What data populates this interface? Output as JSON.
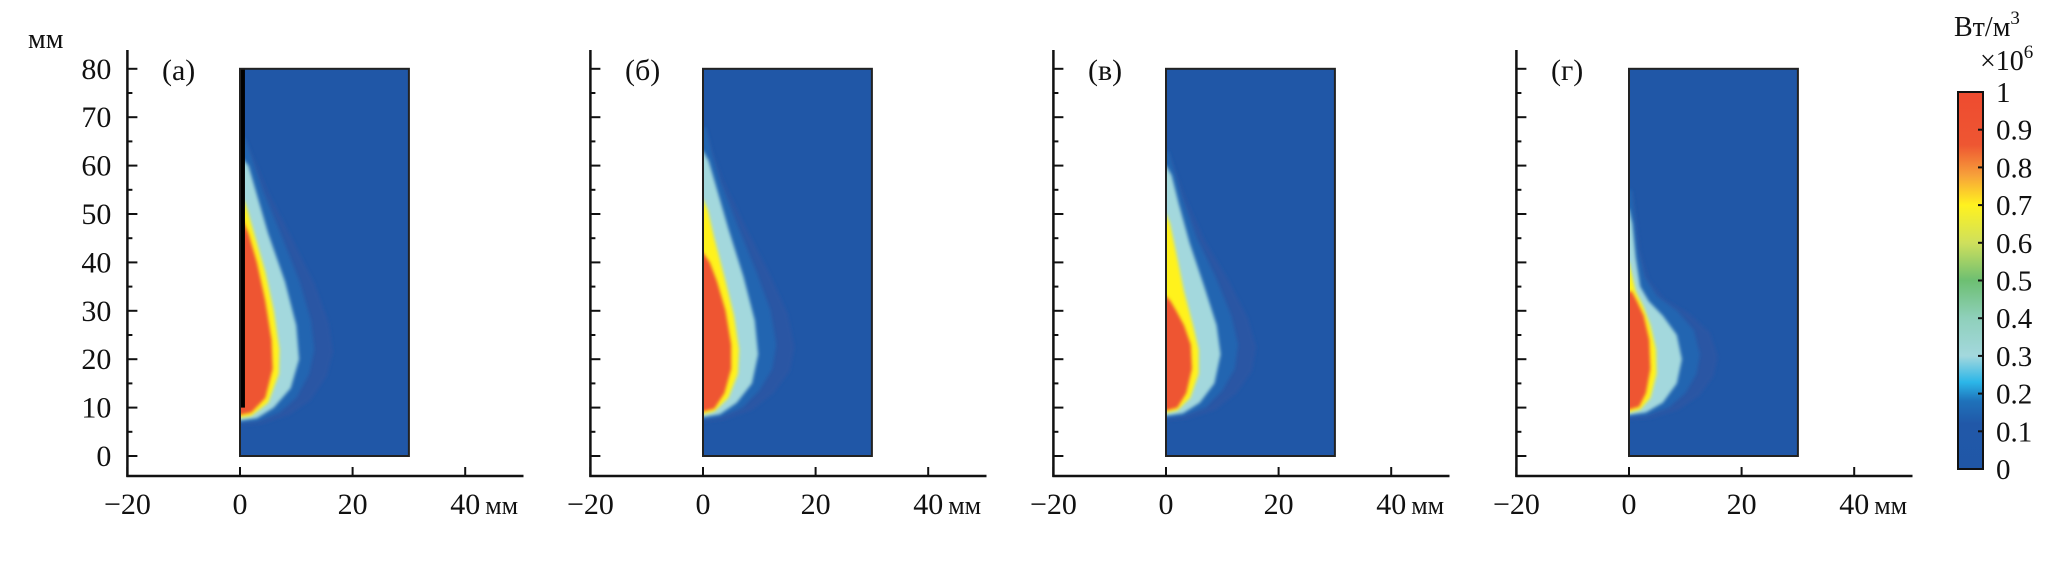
{
  "chart_data": {
    "type": "heatmap",
    "y_unit_label": "мм",
    "x_unit_label": "мм",
    "xlim": [
      -20,
      50
    ],
    "ylim": [
      -4,
      84
    ],
    "x_ticks": [
      -20,
      0,
      20,
      40
    ],
    "x_tick_labels": [
      "−20",
      "0",
      "20",
      "40"
    ],
    "y_ticks": [
      0,
      10,
      20,
      30,
      40,
      50,
      60,
      70,
      80
    ],
    "y_tick_labels": [
      "0",
      "10",
      "20",
      "30",
      "40",
      "50",
      "60",
      "70",
      "80"
    ],
    "domain_rect": {
      "x": [
        0,
        30
      ],
      "y": [
        0,
        80
      ]
    },
    "colorbar": {
      "title": "Вт/м",
      "title_sup": "3",
      "multiplier": "×10",
      "multiplier_sup": "6",
      "range": [
        0,
        1
      ],
      "ticks": [
        0,
        0.1,
        0.2,
        0.3,
        0.4,
        0.5,
        0.6,
        0.7,
        0.8,
        0.9,
        1
      ],
      "tick_labels": [
        "0",
        "0.1",
        "0.2",
        "0.3",
        "0.4",
        "0.5",
        "0.6",
        "0.7",
        "0.8",
        "0.9",
        "1"
      ],
      "colormap": [
        [
          0,
          "#2057a7"
        ],
        [
          0.12,
          "#2158a8"
        ],
        [
          0.18,
          "#1f72ba"
        ],
        [
          0.23,
          "#2bb6e8"
        ],
        [
          0.3,
          "#a3d8dd"
        ],
        [
          0.4,
          "#8fd0bb"
        ],
        [
          0.5,
          "#6dbf72"
        ],
        [
          0.6,
          "#cfe05c"
        ],
        [
          0.7,
          "#fff21f"
        ],
        [
          0.78,
          "#f7a03a"
        ],
        [
          0.86,
          "#ee5632"
        ],
        [
          1,
          "#ee4b30"
        ]
      ]
    },
    "panels": [
      {
        "label": "(а)",
        "wall": {
          "x": [
            0,
            0.7
          ],
          "y": [
            10,
            80
          ],
          "color": "#000000"
        },
        "contours": [
          {
            "level": 0.15,
            "points": [
              [
                0,
                6.8
              ],
              [
                3,
                7.1
              ],
              [
                7,
                9
              ],
              [
                10,
                12
              ],
              [
                12.3,
                17
              ],
              [
                13.2,
                22
              ],
              [
                12.6,
                28
              ],
              [
                10.6,
                36
              ],
              [
                7.2,
                46
              ],
              [
                4,
                55
              ],
              [
                2,
                62
              ],
              [
                0.8,
                66
              ],
              [
                0,
                66
              ]
            ]
          },
          {
            "level": 0.3,
            "points": [
              [
                0,
                7.3
              ],
              [
                3,
                7.8
              ],
              [
                6,
                10
              ],
              [
                9,
                14
              ],
              [
                10.5,
                20
              ],
              [
                10,
                27
              ],
              [
                8,
                36
              ],
              [
                5,
                46
              ],
              [
                3,
                54
              ],
              [
                1.5,
                60
              ],
              [
                0,
                62
              ]
            ]
          },
          {
            "level": 0.7,
            "points": [
              [
                0,
                7.9
              ],
              [
                2,
                8.3
              ],
              [
                5,
                11
              ],
              [
                6.9,
                17
              ],
              [
                7,
                22
              ],
              [
                6,
                30
              ],
              [
                4.5,
                38
              ],
              [
                2.5,
                46
              ],
              [
                1,
                52
              ],
              [
                0,
                54
              ]
            ]
          },
          {
            "level": 0.88,
            "points": [
              [
                0,
                8.5
              ],
              [
                2,
                9
              ],
              [
                4.5,
                12
              ],
              [
                5.8,
                18
              ],
              [
                5.6,
                24
              ],
              [
                4.5,
                32
              ],
              [
                3,
                40
              ],
              [
                1.5,
                46
              ],
              [
                0,
                50
              ]
            ]
          }
        ]
      },
      {
        "label": "(б)",
        "contours": [
          {
            "level": 0.15,
            "points": [
              [
                0,
                7.5
              ],
              [
                3,
                8
              ],
              [
                7,
                10
              ],
              [
                10,
                13.5
              ],
              [
                12.3,
                18
              ],
              [
                13,
                23
              ],
              [
                12,
                30
              ],
              [
                9.5,
                38
              ],
              [
                6,
                48
              ],
              [
                3,
                57
              ],
              [
                1.5,
                63
              ],
              [
                0.5,
                68
              ],
              [
                0,
                68
              ]
            ]
          },
          {
            "level": 0.3,
            "points": [
              [
                0,
                8
              ],
              [
                3,
                8.6
              ],
              [
                6,
                11
              ],
              [
                8.7,
                15
              ],
              [
                9.8,
                21
              ],
              [
                9.2,
                28
              ],
              [
                7.2,
                37
              ],
              [
                4.5,
                47
              ],
              [
                2.5,
                55
              ],
              [
                1,
                61
              ],
              [
                0,
                63
              ]
            ]
          },
          {
            "level": 0.7,
            "points": [
              [
                0,
                8.6
              ],
              [
                2,
                9.2
              ],
              [
                4.5,
                12
              ],
              [
                6.2,
                17
              ],
              [
                6.4,
                22
              ],
              [
                5.5,
                29
              ],
              [
                3.8,
                37
              ],
              [
                2,
                45
              ],
              [
                0.8,
                51
              ],
              [
                0,
                53
              ]
            ]
          },
          {
            "level": 0.88,
            "points": [
              [
                0,
                9.2
              ],
              [
                2,
                9.8
              ],
              [
                3.8,
                13
              ],
              [
                5,
                18
              ],
              [
                5,
                23
              ],
              [
                4,
                30
              ],
              [
                2.5,
                36
              ],
              [
                1.2,
                40
              ],
              [
                0,
                42
              ]
            ]
          }
        ]
      },
      {
        "label": "(в)",
        "contours": [
          {
            "level": 0.15,
            "points": [
              [
                0,
                7.8
              ],
              [
                3,
                8.2
              ],
              [
                7,
                10
              ],
              [
                10,
                13.5
              ],
              [
                12.2,
                18
              ],
              [
                12.8,
                23
              ],
              [
                11.6,
                29
              ],
              [
                8.8,
                37
              ],
              [
                5.5,
                45
              ],
              [
                3,
                53
              ],
              [
                1.5,
                59
              ],
              [
                0.5,
                63
              ],
              [
                0,
                63
              ]
            ]
          },
          {
            "level": 0.3,
            "points": [
              [
                0,
                8.3
              ],
              [
                3,
                8.8
              ],
              [
                6,
                11
              ],
              [
                8.6,
                15
              ],
              [
                9.7,
                21
              ],
              [
                9,
                27
              ],
              [
                6.8,
                35
              ],
              [
                4.2,
                44
              ],
              [
                2.3,
                52
              ],
              [
                1,
                58
              ],
              [
                0,
                60
              ]
            ]
          },
          {
            "level": 0.7,
            "points": [
              [
                0,
                8.9
              ],
              [
                2,
                9.4
              ],
              [
                4.3,
                12
              ],
              [
                5.8,
                17
              ],
              [
                5.8,
                22
              ],
              [
                4.8,
                27
              ],
              [
                3.2,
                34
              ],
              [
                1.8,
                42
              ],
              [
                0.7,
                48
              ],
              [
                0,
                50
              ]
            ]
          },
          {
            "level": 0.88,
            "points": [
              [
                0,
                9.4
              ],
              [
                2,
                10
              ],
              [
                3.6,
                13
              ],
              [
                4.6,
                18
              ],
              [
                4.4,
                23
              ],
              [
                3.2,
                27
              ],
              [
                1.8,
                30
              ],
              [
                0.8,
                32
              ],
              [
                0,
                33
              ]
            ]
          }
        ]
      },
      {
        "label": "(г)",
        "contours": [
          {
            "level": 0.15,
            "points": [
              [
                0,
                8
              ],
              [
                3,
                8.3
              ],
              [
                7,
                10
              ],
              [
                10,
                13
              ],
              [
                12,
                17
              ],
              [
                12.6,
                21
              ],
              [
                11.5,
                26
              ],
              [
                8.5,
                30
              ],
              [
                5,
                33
              ],
              [
                2.8,
                37
              ],
              [
                1.6,
                43
              ],
              [
                1,
                50
              ],
              [
                0.5,
                55
              ],
              [
                0,
                55
              ]
            ]
          },
          {
            "level": 0.3,
            "points": [
              [
                0,
                8.5
              ],
              [
                3,
                9
              ],
              [
                6,
                11
              ],
              [
                8.5,
                15
              ],
              [
                9.4,
                20
              ],
              [
                8.5,
                25
              ],
              [
                6,
                29
              ],
              [
                3.5,
                32
              ],
              [
                2,
                35
              ],
              [
                1.2,
                41
              ],
              [
                0.6,
                48
              ],
              [
                0,
                51
              ]
            ]
          },
          {
            "level": 0.7,
            "points": [
              [
                0,
                9
              ],
              [
                2,
                9.6
              ],
              [
                3.8,
                12
              ],
              [
                4.9,
                17
              ],
              [
                4.8,
                22
              ],
              [
                3.8,
                27
              ],
              [
                2.5,
                31
              ],
              [
                1.2,
                34
              ],
              [
                0.4,
                38
              ],
              [
                0,
                40
              ]
            ]
          },
          {
            "level": 0.88,
            "points": [
              [
                0,
                9.6
              ],
              [
                1.8,
                10.2
              ],
              [
                3,
                13
              ],
              [
                3.8,
                18
              ],
              [
                3.6,
                24
              ],
              [
                2.6,
                29
              ],
              [
                1.4,
                32
              ],
              [
                0.5,
                34
              ],
              [
                0,
                34
              ]
            ]
          }
        ]
      }
    ]
  }
}
